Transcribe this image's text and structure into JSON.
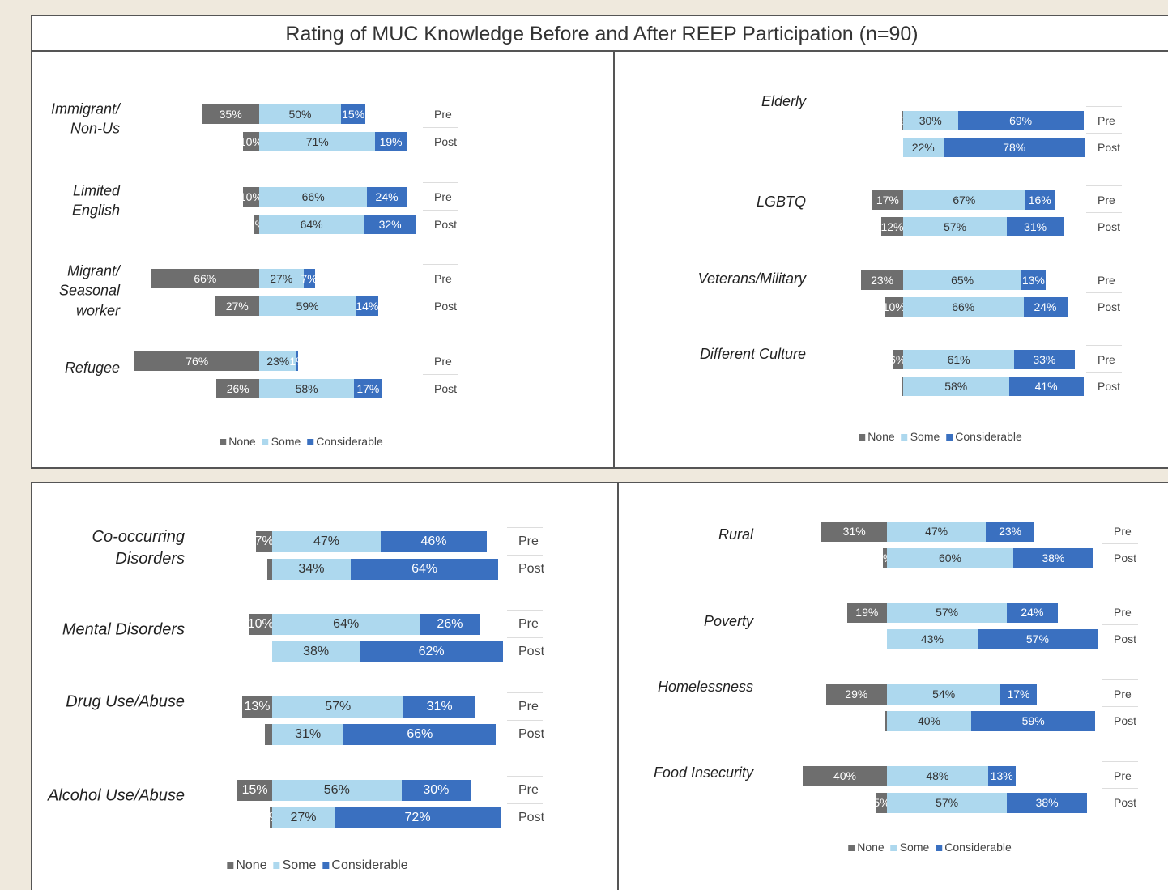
{
  "title": "Rating of MUC Knowledge Before and After REEP Participation (n=90)",
  "chart_data": [
    {
      "type": "diverging-bar",
      "categories": [
        "Immigrant/ Non-Us",
        "Limited English",
        "Migrant/ Seasonal worker",
        "Refugee"
      ],
      "periods": [
        "Pre",
        "Post"
      ],
      "series": [
        {
          "name": "None",
          "color": "#6e6e6e",
          "values": [
            [
              35,
              10
            ],
            [
              10,
              3
            ],
            [
              66,
              27
            ],
            [
              76,
              26
            ]
          ],
          "value_labels": [
            [
              "35%",
              "10%"
            ],
            [
              "10%",
              "3%"
            ],
            [
              "66%",
              "27%"
            ],
            [
              "76%",
              "26%"
            ]
          ]
        },
        {
          "name": "Some",
          "color": "#add8ee",
          "values": [
            [
              50,
              71
            ],
            [
              66,
              64
            ],
            [
              27,
              59
            ],
            [
              23,
              58
            ]
          ],
          "value_labels": [
            [
              "50%",
              "71%"
            ],
            [
              "66%",
              "64%"
            ],
            [
              "27%",
              "59%"
            ],
            [
              "23%",
              "58%"
            ]
          ]
        },
        {
          "name": "Considerable",
          "color": "#3a70c0",
          "values": [
            [
              15,
              19
            ],
            [
              24,
              32
            ],
            [
              7,
              14
            ],
            [
              1,
              17
            ]
          ],
          "value_labels": [
            [
              "15%",
              "19%"
            ],
            [
              "24%",
              "32%"
            ],
            [
              "7%",
              "14%"
            ],
            [
              "1%",
              "17%"
            ]
          ]
        }
      ]
    },
    {
      "type": "diverging-bar",
      "categories": [
        "Elderly",
        "LGBTQ",
        "Veterans/Military",
        "Different Culture"
      ],
      "periods": [
        "Pre",
        "Post"
      ],
      "series": [
        {
          "name": "None",
          "color": "#6e6e6e",
          "values": [
            [
              1,
              0
            ],
            [
              17,
              12
            ],
            [
              23,
              10
            ],
            [
              6,
              1
            ]
          ],
          "value_labels": [
            [
              "1%",
              null
            ],
            [
              "17%",
              "12%"
            ],
            [
              "23%",
              "10%"
            ],
            [
              "6%",
              null
            ]
          ]
        },
        {
          "name": "Some",
          "color": "#add8ee",
          "values": [
            [
              30,
              22
            ],
            [
              67,
              57
            ],
            [
              65,
              66
            ],
            [
              61,
              58
            ]
          ],
          "value_labels": [
            [
              "30%",
              "22%"
            ],
            [
              "67%",
              "57%"
            ],
            [
              "65%",
              "66%"
            ],
            [
              "61%",
              "58%"
            ]
          ]
        },
        {
          "name": "Considerable",
          "color": "#3a70c0",
          "values": [
            [
              69,
              78
            ],
            [
              16,
              31
            ],
            [
              13,
              24
            ],
            [
              33,
              41
            ]
          ],
          "value_labels": [
            [
              "69%",
              "78%"
            ],
            [
              "16%",
              "31%"
            ],
            [
              "13%",
              "24%"
            ],
            [
              "33%",
              "41%"
            ]
          ]
        }
      ]
    },
    {
      "type": "diverging-bar",
      "categories": [
        "Co-occurring Disorders",
        "Mental Disorders",
        "Drug Use/Abuse",
        "Alcohol Use/Abuse"
      ],
      "periods": [
        "Pre",
        "Post"
      ],
      "series": [
        {
          "name": "None",
          "color": "#6e6e6e",
          "values": [
            [
              7,
              2
            ],
            [
              10,
              0
            ],
            [
              13,
              3
            ],
            [
              15,
              1
            ]
          ],
          "value_labels": [
            [
              "7%",
              null
            ],
            [
              "10%",
              null
            ],
            [
              "13%",
              null
            ],
            [
              "15%",
              "1%"
            ]
          ]
        },
        {
          "name": "Some",
          "color": "#add8ee",
          "values": [
            [
              47,
              34
            ],
            [
              64,
              38
            ],
            [
              57,
              31
            ],
            [
              56,
              27
            ]
          ],
          "value_labels": [
            [
              "47%",
              "34%"
            ],
            [
              "64%",
              "38%"
            ],
            [
              "57%",
              "31%"
            ],
            [
              "56%",
              "27%"
            ]
          ]
        },
        {
          "name": "Considerable",
          "color": "#3a70c0",
          "values": [
            [
              46,
              64
            ],
            [
              26,
              62
            ],
            [
              31,
              66
            ],
            [
              30,
              72
            ]
          ],
          "value_labels": [
            [
              "46%",
              "64%"
            ],
            [
              "26%",
              "62%"
            ],
            [
              "31%",
              "66%"
            ],
            [
              "30%",
              "72%"
            ]
          ]
        }
      ]
    },
    {
      "type": "diverging-bar",
      "categories": [
        "Rural",
        "Poverty",
        "Homelessness",
        "Food Insecurity"
      ],
      "periods": [
        "Pre",
        "Post"
      ],
      "series": [
        {
          "name": "None",
          "color": "#6e6e6e",
          "values": [
            [
              31,
              2
            ],
            [
              19,
              0
            ],
            [
              29,
              1
            ],
            [
              40,
              5
            ]
          ],
          "value_labels": [
            [
              "31%",
              "2%"
            ],
            [
              "19%",
              null
            ],
            [
              "29%",
              null
            ],
            [
              "40%",
              "5%"
            ]
          ]
        },
        {
          "name": "Some",
          "color": "#add8ee",
          "values": [
            [
              47,
              60
            ],
            [
              57,
              43
            ],
            [
              54,
              40
            ],
            [
              48,
              57
            ]
          ],
          "value_labels": [
            [
              "47%",
              "60%"
            ],
            [
              "57%",
              "43%"
            ],
            [
              "54%",
              "40%"
            ],
            [
              "48%",
              "57%"
            ]
          ]
        },
        {
          "name": "Considerable",
          "color": "#3a70c0",
          "values": [
            [
              23,
              38
            ],
            [
              24,
              57
            ],
            [
              17,
              59
            ],
            [
              13,
              38
            ]
          ],
          "value_labels": [
            [
              "23%",
              "38%"
            ],
            [
              "24%",
              "57%"
            ],
            [
              "17%",
              "59%"
            ],
            [
              "13%",
              "38%"
            ]
          ]
        }
      ]
    }
  ]
}
